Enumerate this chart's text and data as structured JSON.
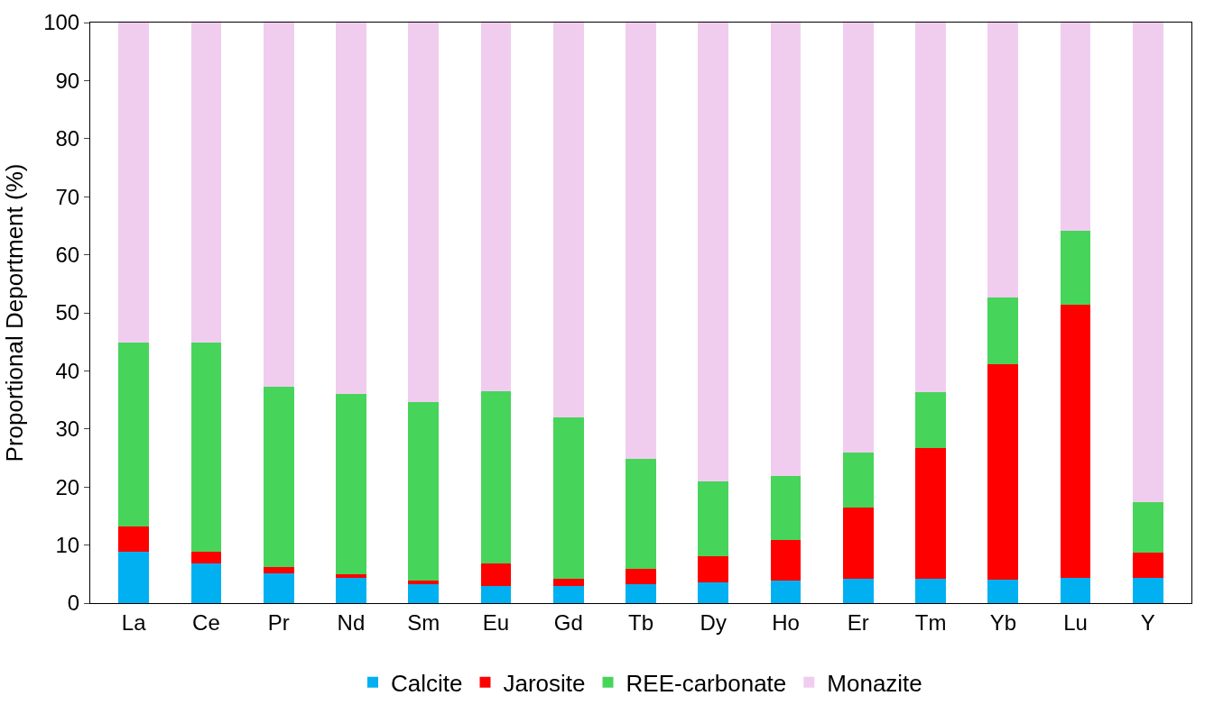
{
  "chart_data": {
    "type": "bar",
    "stacked": true,
    "ylabel": "Proportional Deportment (%)",
    "categories": [
      "La",
      "Ce",
      "Pr",
      "Nd",
      "Sm",
      "Eu",
      "Gd",
      "Tb",
      "Dy",
      "Ho",
      "Er",
      "Tm",
      "Yb",
      "Lu",
      "Y"
    ],
    "series": [
      {
        "name": "Calcite",
        "color": "#00b0f0",
        "values": [
          8.9,
          6.9,
          5.1,
          4.4,
          3.2,
          3.0,
          3.0,
          3.2,
          3.5,
          3.9,
          4.2,
          4.2,
          4.1,
          4.4,
          4.4
        ]
      },
      {
        "name": "Jarosite",
        "color": "#ff0000",
        "values": [
          4.3,
          2.0,
          1.1,
          0.6,
          0.7,
          3.8,
          1.2,
          2.7,
          4.5,
          6.9,
          12.2,
          22.5,
          37.0,
          47.0,
          4.3
        ]
      },
      {
        "name": "REE-carbonate",
        "color": "#47d45a",
        "values": [
          31.7,
          36.0,
          31.0,
          31.0,
          30.8,
          29.7,
          27.8,
          19.0,
          12.9,
          11.1,
          9.6,
          9.6,
          11.6,
          12.7,
          8.7
        ]
      },
      {
        "name": "Monazite",
        "color": "#f0cdef",
        "values": [
          55.1,
          55.1,
          62.8,
          64.0,
          65.3,
          63.5,
          68.0,
          75.1,
          79.1,
          78.1,
          74.0,
          63.7,
          47.3,
          35.9,
          82.6
        ]
      }
    ],
    "ylim": [
      0,
      100
    ],
    "yticks": [
      0,
      10,
      20,
      30,
      40,
      50,
      60,
      70,
      80,
      90,
      100
    ],
    "legend": "bottom"
  }
}
